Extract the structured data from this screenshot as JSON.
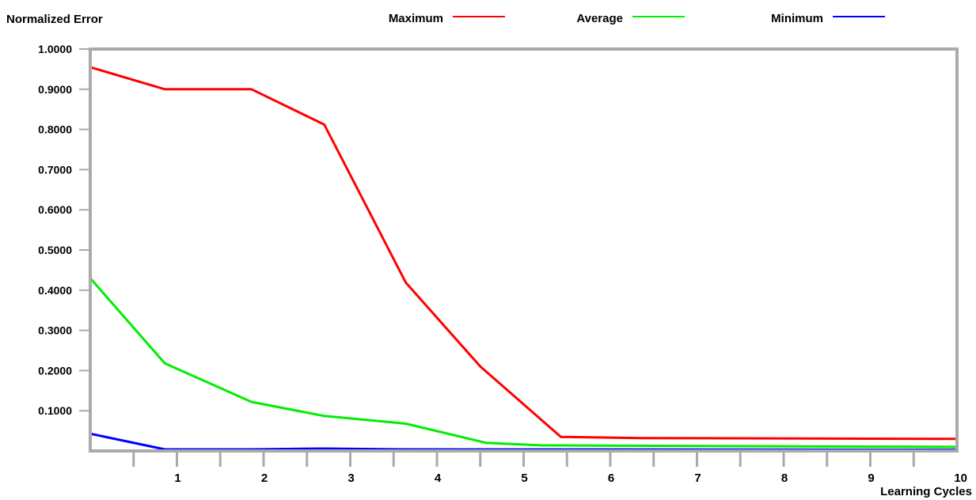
{
  "chart_data": {
    "type": "line",
    "title": "",
    "ylabel": "Normalized Error",
    "xlabel": "Learning Cycles",
    "xlim": [
      0,
      10
    ],
    "ylim": [
      0,
      1
    ],
    "xticks": [
      1,
      2,
      3,
      4,
      5,
      6,
      7,
      8,
      9,
      10
    ],
    "xtick_labels": [
      "1",
      "2",
      "3",
      "4",
      "5",
      "6",
      "7",
      "8",
      "9",
      "10"
    ],
    "yticks": [
      0.1,
      0.2,
      0.3,
      0.4,
      0.5,
      0.6,
      0.7,
      0.8,
      0.9,
      1.0
    ],
    "ytick_labels": [
      "0.1000",
      "0.2000",
      "0.3000",
      "0.4000",
      "0.5000",
      "0.6000",
      "0.7000",
      "0.8000",
      "0.9000",
      "1.0000"
    ],
    "legend_position": "top",
    "grid": false,
    "series": [
      {
        "name": "Maximum",
        "color": "#ff0000",
        "x": [
          0,
          0.86,
          1.86,
          2.7,
          3.64,
          4.5,
          5.43,
          6.36,
          10
        ],
        "y": [
          0.955,
          0.9,
          0.9,
          0.812,
          0.419,
          0.21,
          0.035,
          0.032,
          0.03
        ]
      },
      {
        "name": "Average",
        "color": "#00ee00",
        "x": [
          0,
          0.86,
          1.86,
          2.7,
          3.64,
          4.57,
          5.2,
          7.3,
          10
        ],
        "y": [
          0.43,
          0.218,
          0.122,
          0.087,
          0.068,
          0.02,
          0.014,
          0.012,
          0.01
        ]
      },
      {
        "name": "Minimum",
        "color": "#0000ff",
        "x": [
          0,
          0.86,
          1.86,
          2.7,
          3.64,
          10
        ],
        "y": [
          0.043,
          0.004,
          0.004,
          0.006,
          0.004,
          0.003
        ]
      }
    ]
  }
}
